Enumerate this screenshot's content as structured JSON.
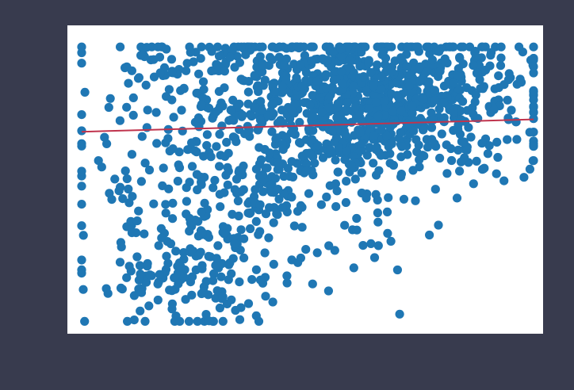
{
  "figure": {
    "background_color": "#383b4e",
    "plot_background_color": "#ffffff"
  },
  "chart_data": {
    "type": "scatter",
    "title": "",
    "xlabel": "",
    "ylabel": "",
    "tick_labels_visible": false,
    "grid": false,
    "legend": "none",
    "xlim": [
      0,
      1
    ],
    "ylim": [
      0,
      1
    ],
    "series": [
      {
        "kind": "scatter",
        "color": "#1f77b4",
        "point_count": 1500,
        "clusters": [
          {
            "cx": 0.64,
            "cy": 0.75,
            "sx": 0.17,
            "sy": 0.12,
            "n": 900
          },
          {
            "cx": 0.39,
            "cy": 0.5,
            "sx": 0.17,
            "sy": 0.18,
            "n": 350
          },
          {
            "cx": 0.25,
            "cy": 0.17,
            "sx": 0.1,
            "sy": 0.09,
            "n": 130
          },
          {
            "cx": 0.35,
            "cy": 0.84,
            "sx": 0.2,
            "sy": 0.07,
            "n": 120
          }
        ],
        "x_range": [
          0.03,
          0.98
        ],
        "y_range": [
          0.04,
          0.93
        ]
      },
      {
        "kind": "trend_line",
        "color": "#c0344d",
        "x": [
          0.03,
          0.98
        ],
        "y": [
          0.655,
          0.695
        ]
      }
    ]
  }
}
